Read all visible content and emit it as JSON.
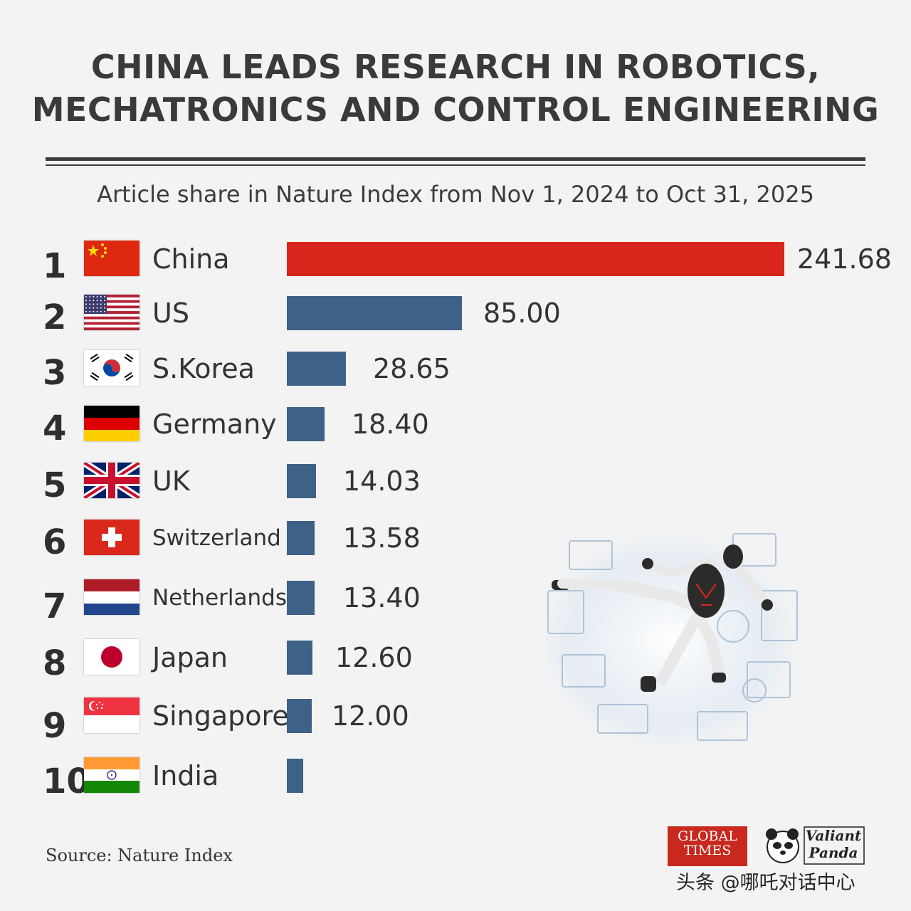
{
  "header": {
    "title_line1": "CHINA LEADS RESEARCH IN ROBOTICS,",
    "title_line2": "MECHATRONICS AND CONTROL ENGINEERING",
    "subtitle": "Article share in Nature Index from Nov 1, 2024 to Oct 31, 2025"
  },
  "chart_data": {
    "type": "bar",
    "orientation": "horizontal",
    "title": "CHINA LEADS RESEARCH IN ROBOTICS, MECHATRONICS AND CONTROL ENGINEERING",
    "subtitle": "Article share in Nature Index from Nov 1, 2024 to Oct 31, 2025",
    "xlabel": "",
    "ylabel": "",
    "categories": [
      "China",
      "US",
      "S.Korea",
      "Germany",
      "UK",
      "Switzerland",
      "Netherlands",
      "Japan",
      "Singapore",
      "India"
    ],
    "ranks": [
      "1",
      "2",
      "3",
      "4",
      "5",
      "6",
      "7",
      "8",
      "9",
      "10"
    ],
    "values": [
      241.68,
      85.0,
      28.65,
      18.4,
      14.03,
      13.58,
      13.4,
      12.6,
      12.0,
      8.0
    ],
    "value_labels": [
      "241.68",
      "85.00",
      "28.65",
      "18.40",
      "14.03",
      "13.58",
      "13.40",
      "12.60",
      "12.00",
      ""
    ],
    "bar_colors": [
      "#d9261c",
      "#3d6187",
      "#3d6187",
      "#3d6187",
      "#3d6187",
      "#3d6187",
      "#3d6187",
      "#3d6187",
      "#3d6187",
      "#3d6187"
    ],
    "flag_icons": [
      "china-flag-icon",
      "us-flag-icon",
      "south-korea-flag-icon",
      "germany-flag-icon",
      "uk-flag-icon",
      "switzerland-flag-icon",
      "netherlands-flag-icon",
      "japan-flag-icon",
      "singapore-flag-icon",
      "india-flag-icon"
    ],
    "grid": false,
    "legend": "none"
  },
  "footer": {
    "source": "Source: Nature Index",
    "logo_global_times_line1": "GLOBAL",
    "logo_global_times_line2": "TIMES",
    "logo_valiant_panda_line1": "Valiant",
    "logo_valiant_panda_line2": "Panda",
    "watermark": "头条 @哪吒对话中心"
  },
  "illustration": {
    "icon": "robot-kick-illustration"
  }
}
